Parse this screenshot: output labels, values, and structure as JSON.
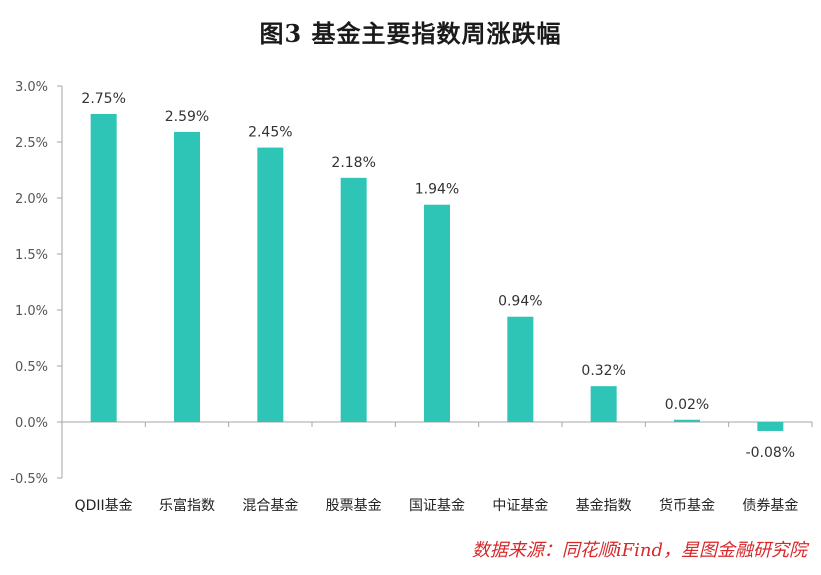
{
  "chart_data": {
    "type": "bar",
    "title": "图3   基金主要指数周涨跌幅",
    "categories": [
      "QDII基金",
      "乐富指数",
      "混合基金",
      "股票基金",
      "国证基金",
      "中证基金",
      "基金指数",
      "货币基金",
      "债券基金"
    ],
    "values": [
      2.75,
      2.59,
      2.45,
      2.18,
      1.94,
      0.94,
      0.32,
      0.02,
      -0.08
    ],
    "data_labels": [
      "2.75%",
      "2.59%",
      "2.45%",
      "2.18%",
      "1.94%",
      "0.94%",
      "0.32%",
      "0.02%",
      "-0.08%"
    ],
    "ylim": [
      -0.5,
      3.0
    ],
    "yticks": [
      "3.0%",
      "2.5%",
      "2.0%",
      "1.5%",
      "1.0%",
      "0.5%",
      "0.0%",
      "-0.5%"
    ],
    "ytick_values": [
      3.0,
      2.5,
      2.0,
      1.5,
      1.0,
      0.5,
      0.0,
      -0.5
    ],
    "bar_color": "#2ec4b6",
    "xlabel": "",
    "ylabel": "",
    "grid": false,
    "source": "数据来源：同花顺iFind，星图金融研究院"
  }
}
